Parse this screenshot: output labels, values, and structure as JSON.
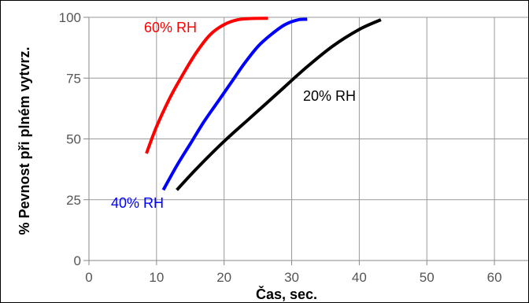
{
  "chart_data": {
    "type": "line",
    "xlabel": "Čas, sec.",
    "ylabel": "% Pevnost při plném vytvrz.",
    "xlim": [
      0,
      65
    ],
    "ylim": [
      0,
      100
    ],
    "x_ticks": [
      0,
      10,
      20,
      30,
      40,
      50,
      60
    ],
    "y_ticks": [
      0,
      25,
      50,
      75,
      100
    ],
    "grid": true,
    "series": [
      {
        "name": "60% RH",
        "color": "#ff0000",
        "x": [
          8.5,
          10,
          12,
          14,
          16,
          18,
          20,
          22,
          24,
          26.5
        ],
        "y": [
          44,
          55,
          67,
          77,
          86,
          93,
          97,
          99,
          99.5,
          99.6
        ]
      },
      {
        "name": "40% RH",
        "color": "#0000ff",
        "x": [
          11,
          13,
          15,
          17,
          19,
          21,
          23,
          25,
          27,
          29,
          31,
          32.3
        ],
        "y": [
          29,
          39,
          48,
          57,
          65,
          73,
          81,
          88,
          93,
          97,
          99,
          99.2
        ]
      },
      {
        "name": "20% RH",
        "color": "#000000",
        "x": [
          13,
          16,
          20,
          24,
          28,
          32,
          36,
          40,
          43.2
        ],
        "y": [
          29,
          38,
          49,
          59,
          69,
          79,
          88,
          95,
          99
        ]
      }
    ]
  }
}
